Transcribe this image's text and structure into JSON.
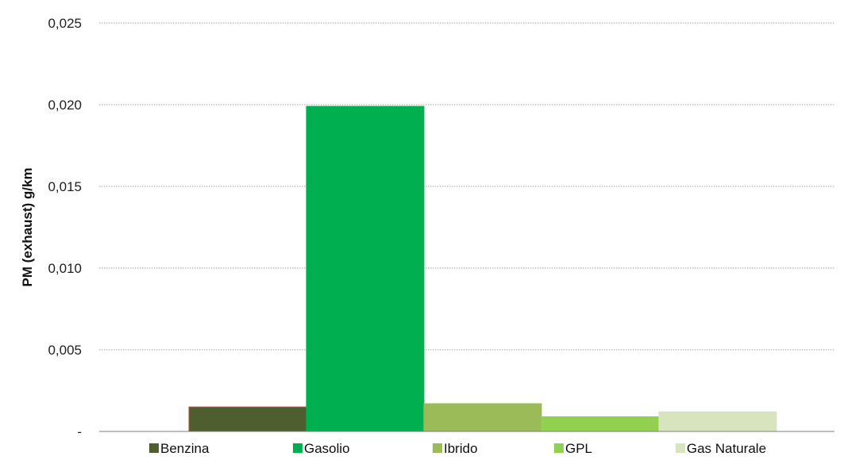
{
  "chart_data": {
    "type": "bar",
    "title": "",
    "xlabel": "",
    "ylabel": "PM (exhaust) g/km",
    "ylim": [
      0,
      0.025
    ],
    "y_ticks": [
      {
        "value": 0,
        "label": "-"
      },
      {
        "value": 0.005,
        "label": "0,005"
      },
      {
        "value": 0.01,
        "label": "0,010"
      },
      {
        "value": 0.015,
        "label": "0,015"
      },
      {
        "value": 0.02,
        "label": "0,020"
      },
      {
        "value": 0.025,
        "label": "0,025"
      }
    ],
    "grid": true,
    "legend_position": "bottom",
    "series": [
      {
        "name": "Benzina",
        "value": 0.0015,
        "color": "#4e5e2f",
        "border": "#c0504d"
      },
      {
        "name": "Gasolio",
        "value": 0.0199,
        "color": "#00b050",
        "border": "#00b050"
      },
      {
        "name": "Ibrido",
        "value": 0.0017,
        "color": "#9bbb59",
        "border": "#9bbb59"
      },
      {
        "name": "GPL",
        "value": 0.0009,
        "color": "#92d050",
        "border": "#92d050"
      },
      {
        "name": "Gas Naturale",
        "value": 0.0012,
        "color": "#d7e4bd",
        "border": "#d7e4bd"
      }
    ]
  }
}
